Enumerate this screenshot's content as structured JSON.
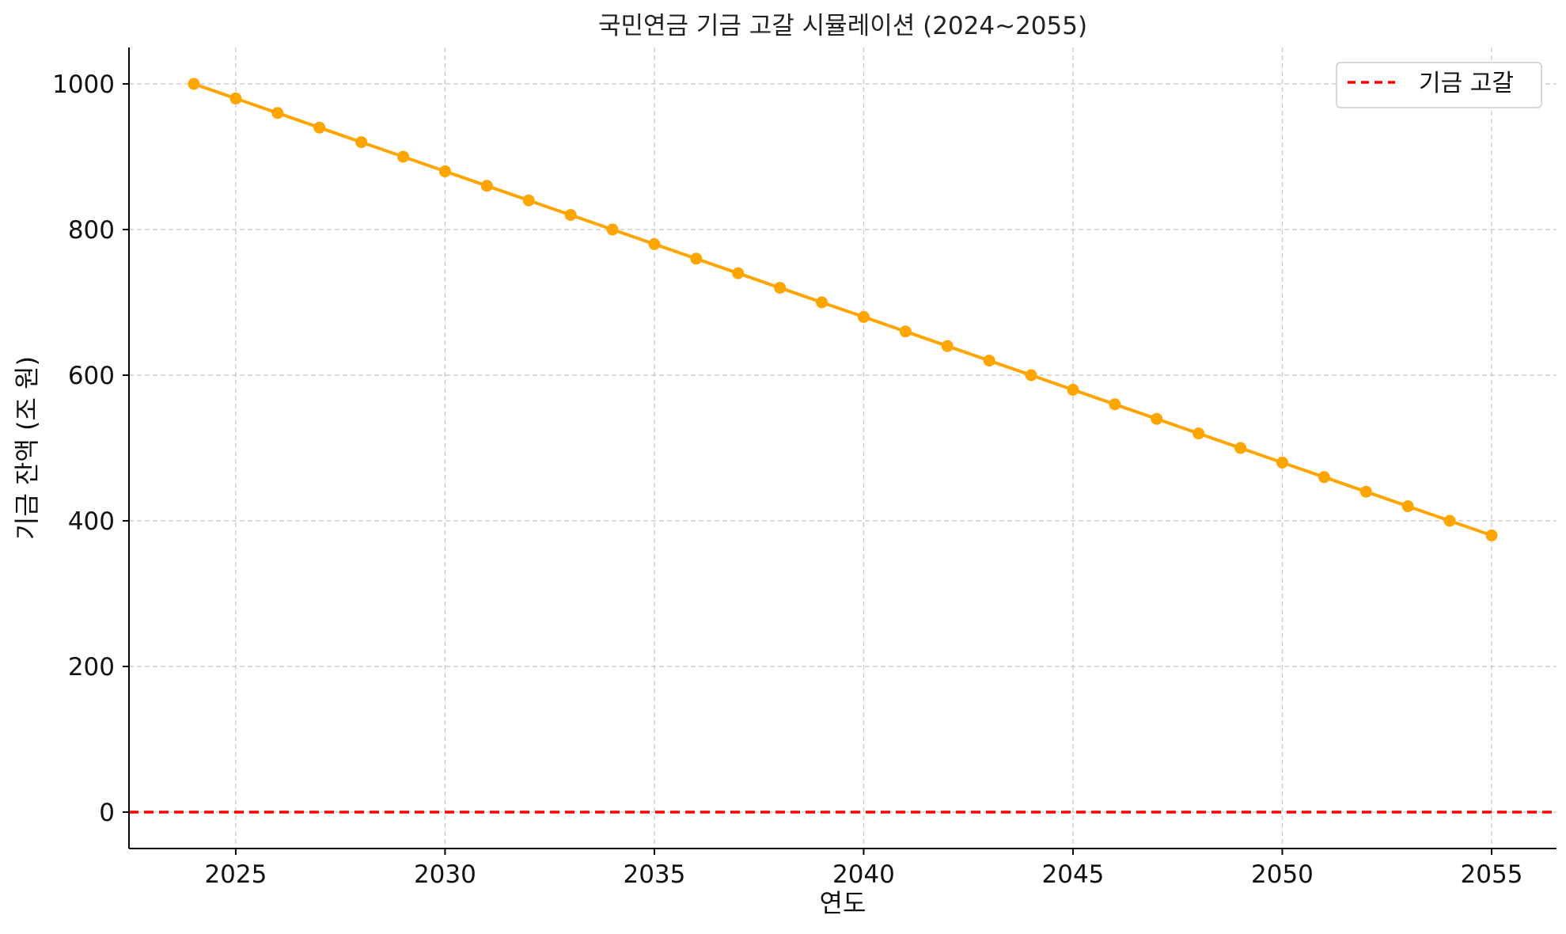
{
  "chart_data": {
    "type": "line",
    "title": "국민연금 기금 고갈 시뮬레이션 (2024~2055)",
    "xlabel": "연도",
    "ylabel": "기금 잔액 (조 원)",
    "xlim": [
      2022.45,
      2056.55
    ],
    "ylim": [
      -50,
      1050
    ],
    "x_ticks": [
      2025,
      2030,
      2035,
      2040,
      2045,
      2050,
      2055
    ],
    "y_ticks": [
      0,
      200,
      400,
      600,
      800,
      1000
    ],
    "grid": true,
    "legend_position": "top-right",
    "series": [
      {
        "color": "#FFA500",
        "marker": "circle",
        "x": [
          2024,
          2025,
          2026,
          2027,
          2028,
          2029,
          2030,
          2031,
          2032,
          2033,
          2034,
          2035,
          2036,
          2037,
          2038,
          2039,
          2040,
          2041,
          2042,
          2043,
          2044,
          2045,
          2046,
          2047,
          2048,
          2049,
          2050,
          2051,
          2052,
          2053,
          2054,
          2055
        ],
        "y": [
          1000,
          980,
          960,
          940,
          920,
          900,
          880,
          860,
          840,
          820,
          800,
          780,
          760,
          740,
          720,
          700,
          680,
          660,
          640,
          620,
          600,
          580,
          560,
          540,
          520,
          500,
          480,
          460,
          440,
          420,
          400,
          380
        ]
      }
    ],
    "reference_lines": [
      {
        "name": "기금 고갈",
        "y": 0,
        "color": "#FF0000",
        "style": "dashed"
      }
    ]
  }
}
